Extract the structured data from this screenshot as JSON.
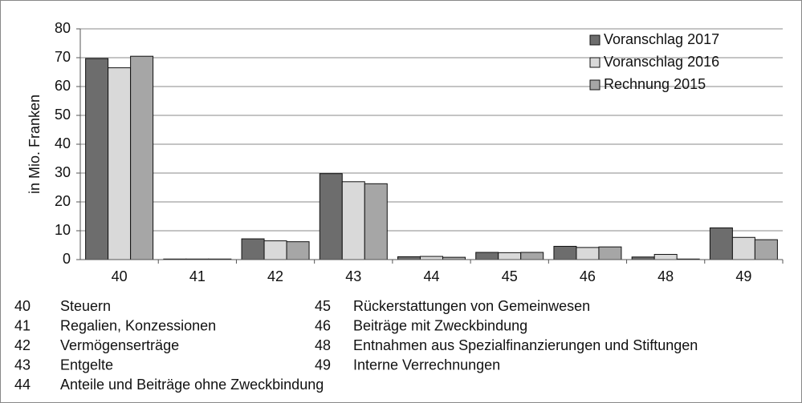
{
  "chart_data": {
    "type": "bar",
    "y_label": "in Mio. Franken",
    "categories": [
      "40",
      "41",
      "42",
      "43",
      "44",
      "45",
      "46",
      "48",
      "49"
    ],
    "series": [
      {
        "name": "Voranschlag 2017",
        "color": "#6d6d6d",
        "values": [
          69.7,
          0.2,
          7.2,
          29.8,
          1.0,
          2.5,
          4.6,
          0.9,
          11.0
        ]
      },
      {
        "name": "Voranschlag 2016",
        "color": "#d9d9d9",
        "values": [
          66.5,
          0.2,
          6.5,
          27.0,
          1.1,
          2.4,
          4.2,
          1.8,
          7.7
        ]
      },
      {
        "name": "Rechnung 2015",
        "color": "#a6a6a6",
        "values": [
          70.5,
          0.2,
          6.2,
          26.3,
          0.8,
          2.5,
          4.4,
          0.2,
          6.9
        ]
      }
    ],
    "ylim": [
      0,
      80
    ],
    "yticks": [
      0,
      10,
      20,
      30,
      40,
      50,
      60,
      70,
      80
    ],
    "grid": true,
    "legend": "top-right"
  },
  "notes": [
    {
      "code": "40",
      "label": "Steuern"
    },
    {
      "code": "41",
      "label": "Regalien, Konzessionen"
    },
    {
      "code": "42",
      "label": "Vermögenserträge"
    },
    {
      "code": "43",
      "label": "Entgelte"
    },
    {
      "code": "44",
      "label": "Anteile und Beiträge ohne Zweckbindung"
    },
    {
      "code": "45",
      "label": "Rückerstattungen von Gemeinwesen"
    },
    {
      "code": "46",
      "label": "Beiträge mit Zweckbindung"
    },
    {
      "code": "48",
      "label": "Entnahmen aus Spezialfinanzierungen und Stiftungen"
    },
    {
      "code": "49",
      "label": "Interne Verrechnungen"
    }
  ]
}
